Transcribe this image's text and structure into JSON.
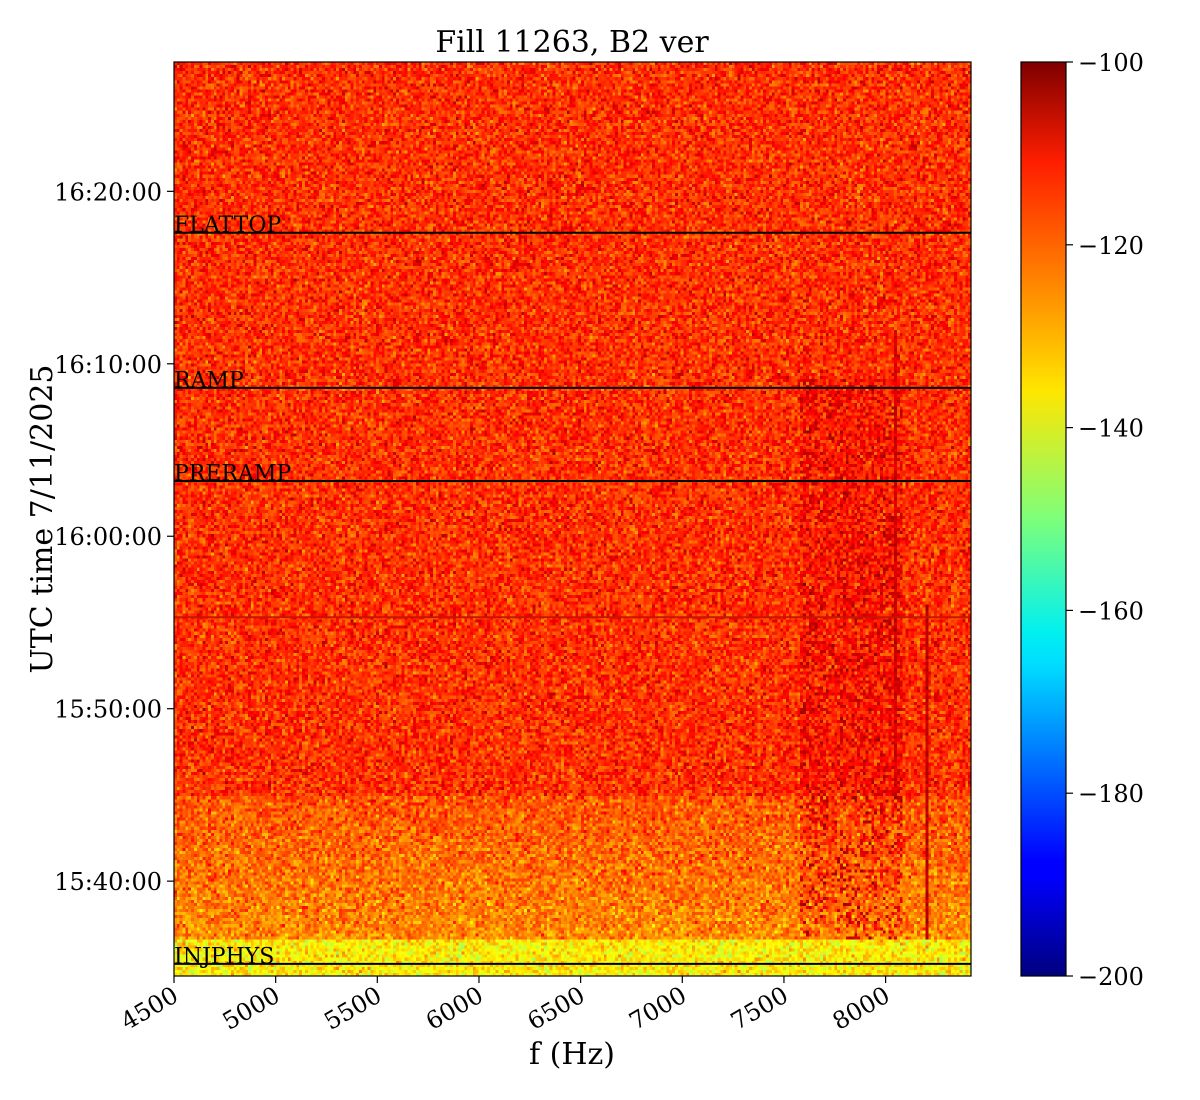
{
  "chart_data": {
    "type": "heatmap",
    "title": "Fill 11263, B2 ver",
    "xlabel": "f (Hz)",
    "ylabel": "UTC time 7/11/2025",
    "xlim": [
      4500,
      8420
    ],
    "x_ticks": [
      4500,
      5000,
      5500,
      6000,
      6500,
      7000,
      7500,
      8000
    ],
    "y_range_minutes": [
      934.5,
      987.5
    ],
    "y_ticks": [
      {
        "label": "15:40:00",
        "minutes": 940
      },
      {
        "label": "15:50:00",
        "minutes": 950
      },
      {
        "label": "16:00:00",
        "minutes": 960
      },
      {
        "label": "16:10:00",
        "minutes": 970
      },
      {
        "label": "16:20:00",
        "minutes": 980
      }
    ],
    "markers": [
      {
        "label": "INJPHYS",
        "minutes": 935.2
      },
      {
        "label": "PRERAMP",
        "minutes": 963.2
      },
      {
        "label": "RAMP",
        "minutes": 968.6
      },
      {
        "label": "FLATTOP",
        "minutes": 977.6
      }
    ],
    "unlabeled_line_minutes": 955.3,
    "colorbar": {
      "colormap": "jet",
      "vmin": -200,
      "vmax": -100,
      "ticks": [
        -100,
        -120,
        -140,
        -160,
        -180,
        -200
      ]
    },
    "typical_levels": {
      "background": -117,
      "early_section": -126,
      "injection_band": -136,
      "feature_region": -108
    },
    "grid": false
  }
}
